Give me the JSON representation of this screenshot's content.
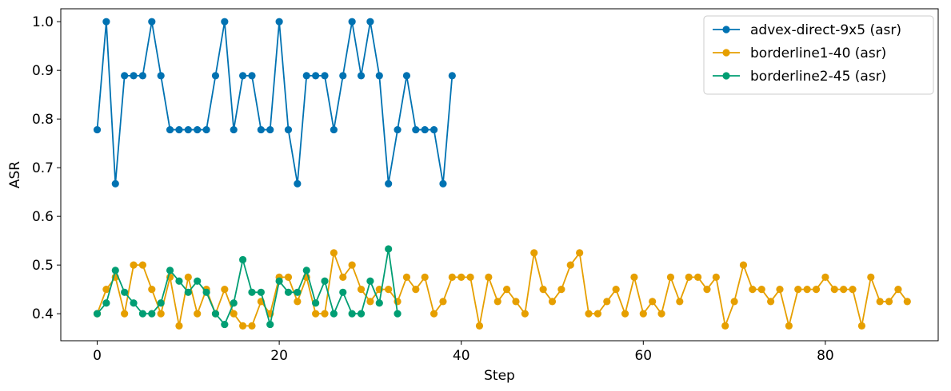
{
  "chart_data": {
    "type": "line",
    "xlabel": "Step",
    "ylabel": "ASR",
    "xlim": [
      -4,
      92.4
    ],
    "ylim": [
      0.3445,
      1.0265
    ],
    "xticks": [
      0,
      20,
      40,
      60,
      80
    ],
    "yticks": [
      0.4,
      0.5,
      0.6,
      0.7,
      0.8,
      0.9,
      1.0
    ],
    "xtick_labels": [
      "0",
      "20",
      "40",
      "60",
      "80"
    ],
    "ytick_labels": [
      "0.4",
      "0.5",
      "0.6",
      "0.7",
      "0.8",
      "0.9",
      "1.0"
    ],
    "grid": false,
    "legend_position": "top-right",
    "series": [
      {
        "name": "advex-direct-9x5 (asr)",
        "color": "#0072b2",
        "x": [
          0,
          1,
          2,
          3,
          4,
          5,
          6,
          7,
          8,
          9,
          10,
          11,
          12,
          13,
          14,
          15,
          16,
          17,
          18,
          19,
          20,
          21,
          22,
          23,
          24,
          25,
          26,
          27,
          28,
          29,
          30,
          31,
          32,
          33,
          34,
          35,
          36,
          37,
          38,
          39
        ],
        "y": [
          0.778,
          1.0,
          0.667,
          0.889,
          0.889,
          0.889,
          1.0,
          0.889,
          0.778,
          0.778,
          0.778,
          0.778,
          0.778,
          0.889,
          1.0,
          0.778,
          0.889,
          0.889,
          0.778,
          0.778,
          1.0,
          0.778,
          0.667,
          0.889,
          0.889,
          0.889,
          0.778,
          0.889,
          1.0,
          0.889,
          1.0,
          0.889,
          0.667,
          0.778,
          0.889,
          0.778,
          0.778,
          0.778,
          0.667,
          0.889
        ]
      },
      {
        "name": "borderline1-40 (asr)",
        "color": "#e69f00",
        "x": [
          0,
          1,
          2,
          3,
          4,
          5,
          6,
          7,
          8,
          9,
          10,
          11,
          12,
          13,
          14,
          15,
          16,
          17,
          18,
          19,
          20,
          21,
          22,
          23,
          24,
          25,
          26,
          27,
          28,
          29,
          30,
          31,
          32,
          33,
          34,
          35,
          36,
          37,
          38,
          39,
          40,
          41,
          42,
          43,
          44,
          45,
          46,
          47,
          48,
          49,
          50,
          51,
          52,
          53,
          54,
          55,
          56,
          57,
          58,
          59,
          60,
          61,
          62,
          63,
          64,
          65,
          66,
          67,
          68,
          69,
          70,
          71,
          72,
          73,
          74,
          75,
          76,
          77,
          78,
          79,
          80,
          81,
          82,
          83,
          84,
          85,
          86,
          87,
          88,
          89
        ],
        "y": [
          0.4,
          0.45,
          0.475,
          0.4,
          0.5,
          0.5,
          0.45,
          0.4,
          0.475,
          0.375,
          0.475,
          0.4,
          0.45,
          0.4,
          0.45,
          0.4,
          0.375,
          0.375,
          0.425,
          0.4,
          0.475,
          0.475,
          0.425,
          0.475,
          0.4,
          0.4,
          0.525,
          0.475,
          0.5,
          0.45,
          0.425,
          0.45,
          0.45,
          0.425,
          0.475,
          0.45,
          0.475,
          0.4,
          0.425,
          0.475,
          0.475,
          0.475,
          0.375,
          0.475,
          0.425,
          0.45,
          0.425,
          0.4,
          0.525,
          0.45,
          0.425,
          0.45,
          0.5,
          0.525,
          0.4,
          0.4,
          0.425,
          0.45,
          0.4,
          0.475,
          0.4,
          0.425,
          0.4,
          0.475,
          0.425,
          0.475,
          0.475,
          0.45,
          0.475,
          0.375,
          0.425,
          0.5,
          0.45,
          0.45,
          0.425,
          0.45,
          0.375,
          0.45,
          0.45,
          0.45,
          0.475,
          0.45,
          0.45,
          0.45,
          0.375,
          0.475,
          0.425,
          0.425,
          0.45,
          0.425
        ]
      },
      {
        "name": "borderline2-45 (asr)",
        "color": "#009e73",
        "x": [
          0,
          1,
          2,
          3,
          4,
          5,
          6,
          7,
          8,
          9,
          10,
          11,
          12,
          13,
          14,
          15,
          16,
          17,
          18,
          19,
          20,
          21,
          22,
          23,
          24,
          25,
          26,
          27,
          28,
          29,
          30,
          31,
          32,
          33
        ],
        "y": [
          0.4,
          0.422,
          0.489,
          0.444,
          0.422,
          0.4,
          0.4,
          0.422,
          0.489,
          0.467,
          0.444,
          0.467,
          0.444,
          0.4,
          0.378,
          0.422,
          0.511,
          0.444,
          0.444,
          0.378,
          0.467,
          0.444,
          0.444,
          0.489,
          0.422,
          0.467,
          0.4,
          0.444,
          0.4,
          0.4,
          0.467,
          0.422,
          0.533,
          0.4
        ]
      }
    ]
  }
}
